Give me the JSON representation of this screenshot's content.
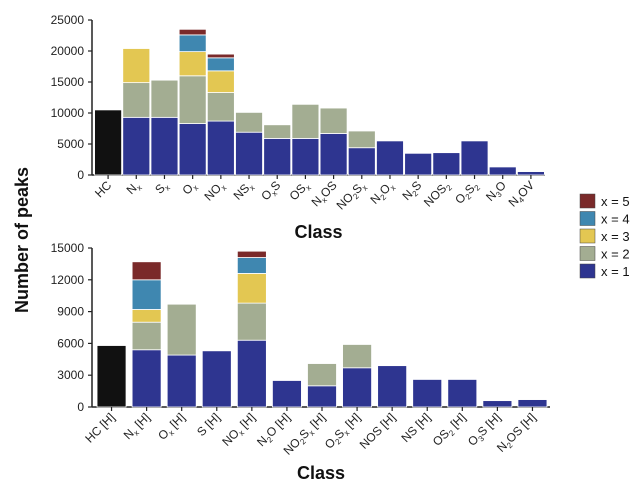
{
  "y_axis_title": "Number of peaks",
  "legend": {
    "entries": [
      {
        "label": "x = 5",
        "color": "#7a2a2a"
      },
      {
        "label": "x = 4",
        "color": "#3f87b0"
      },
      {
        "label": "x = 3",
        "color": "#e3c752"
      },
      {
        "label": "x = 2",
        "color": "#a3ad92"
      },
      {
        "label": "x = 1",
        "color": "#2e3590"
      }
    ]
  },
  "colors": {
    "HC": "#111111",
    "axis": "#222222",
    "bar_edge": "#ffffff"
  },
  "chart_data": [
    {
      "type": "bar",
      "stacked": true,
      "xlabel": "Class",
      "ylabel": "Number of peaks",
      "ylim": [
        0,
        25000
      ],
      "yticks": [
        0,
        5000,
        10000,
        15000,
        20000,
        25000
      ],
      "categories": [
        "HC",
        "Nx",
        "Sx",
        "Ox",
        "NOx",
        "NSx",
        "OxS",
        "OSx",
        "NxOS",
        "NO2Sx",
        "N2Ox",
        "N2S",
        "NOS2",
        "O2S2",
        "N3O",
        "N4OV"
      ],
      "category_labels": [
        [
          {
            "t": "HC"
          }
        ],
        [
          {
            "t": "N"
          },
          {
            "t": "x",
            "sub": true
          }
        ],
        [
          {
            "t": "S"
          },
          {
            "t": "x",
            "sub": true
          }
        ],
        [
          {
            "t": "O"
          },
          {
            "t": "x",
            "sub": true
          }
        ],
        [
          {
            "t": "NO"
          },
          {
            "t": "x",
            "sub": true
          }
        ],
        [
          {
            "t": "NS"
          },
          {
            "t": "x",
            "sub": true
          }
        ],
        [
          {
            "t": "O"
          },
          {
            "t": "x",
            "sub": true
          },
          {
            "t": "S"
          }
        ],
        [
          {
            "t": "OS"
          },
          {
            "t": "x",
            "sub": true
          }
        ],
        [
          {
            "t": "N"
          },
          {
            "t": "x",
            "sub": true
          },
          {
            "t": "OS"
          }
        ],
        [
          {
            "t": "NO"
          },
          {
            "t": "2",
            "sub": true
          },
          {
            "t": "S"
          },
          {
            "t": "x",
            "sub": true
          }
        ],
        [
          {
            "t": "N"
          },
          {
            "t": "2",
            "sub": true
          },
          {
            "t": "O"
          },
          {
            "t": "x",
            "sub": true
          }
        ],
        [
          {
            "t": "N"
          },
          {
            "t": "2",
            "sub": true
          },
          {
            "t": "S"
          }
        ],
        [
          {
            "t": "NOS"
          },
          {
            "t": "2",
            "sub": true
          }
        ],
        [
          {
            "t": "O"
          },
          {
            "t": "2",
            "sub": true
          },
          {
            "t": "S"
          },
          {
            "t": "2",
            "sub": true
          }
        ],
        [
          {
            "t": "N"
          },
          {
            "t": "3",
            "sub": true
          },
          {
            "t": "O"
          }
        ],
        [
          {
            "t": "N"
          },
          {
            "t": "4",
            "sub": true
          },
          {
            "t": "OV"
          }
        ]
      ],
      "series": [
        {
          "name": "HC",
          "values": [
            10500,
            0,
            0,
            0,
            0,
            0,
            0,
            0,
            0,
            0,
            0,
            0,
            0,
            0,
            0,
            0
          ]
        },
        {
          "name": "x = 1",
          "values": [
            0,
            9300,
            9300,
            8300,
            8700,
            6900,
            5900,
            5900,
            6700,
            4400,
            5500,
            3500,
            3600,
            5500,
            1300,
            550
          ]
        },
        {
          "name": "x = 2",
          "values": [
            0,
            5600,
            6000,
            7700,
            4600,
            3200,
            2200,
            5500,
            4100,
            2700,
            0,
            0,
            0,
            0,
            0,
            0
          ]
        },
        {
          "name": "x = 3",
          "values": [
            0,
            5500,
            0,
            3900,
            3500,
            0,
            0,
            0,
            0,
            0,
            0,
            0,
            0,
            0,
            0,
            0
          ]
        },
        {
          "name": "x = 4",
          "values": [
            0,
            0,
            0,
            2700,
            2100,
            0,
            0,
            0,
            0,
            0,
            0,
            0,
            0,
            0,
            0,
            0
          ]
        },
        {
          "name": "x = 5",
          "values": [
            0,
            0,
            0,
            900,
            600,
            0,
            0,
            0,
            0,
            0,
            0,
            0,
            0,
            0,
            0,
            0
          ]
        }
      ]
    },
    {
      "type": "bar",
      "stacked": true,
      "xlabel": "Class",
      "ylabel": "Number of peaks",
      "ylim": [
        0,
        15000
      ],
      "yticks": [
        0,
        3000,
        6000,
        9000,
        12000,
        15000
      ],
      "categories": [
        "HC [H]",
        "Nx [H]",
        "Ox [H]",
        "S [H]",
        "NOx [H]",
        "N2O [H]",
        "NO2Sx [H]",
        "O2Sx [H]",
        "NOS [H]",
        "NS [H]",
        "OS2 [H]",
        "O3S [H]",
        "N2OS [H]"
      ],
      "category_labels": [
        [
          {
            "t": "HC [H]"
          }
        ],
        [
          {
            "t": "N"
          },
          {
            "t": "x",
            "sub": true
          },
          {
            "t": " [H]"
          }
        ],
        [
          {
            "t": "O"
          },
          {
            "t": "x",
            "sub": true
          },
          {
            "t": " [H]"
          }
        ],
        [
          {
            "t": "S [H]"
          }
        ],
        [
          {
            "t": "NO"
          },
          {
            "t": "x",
            "sub": true
          },
          {
            "t": " [H]"
          }
        ],
        [
          {
            "t": "N"
          },
          {
            "t": "2",
            "sub": true
          },
          {
            "t": "O [H]"
          }
        ],
        [
          {
            "t": "NO"
          },
          {
            "t": "2",
            "sub": true
          },
          {
            "t": "S"
          },
          {
            "t": "x",
            "sub": true
          },
          {
            "t": " [H]"
          }
        ],
        [
          {
            "t": "O"
          },
          {
            "t": "2",
            "sub": true
          },
          {
            "t": "S"
          },
          {
            "t": "x",
            "sub": true
          },
          {
            "t": " [H]"
          }
        ],
        [
          {
            "t": "NOS [H]"
          }
        ],
        [
          {
            "t": "NS [H]"
          }
        ],
        [
          {
            "t": "OS"
          },
          {
            "t": "2",
            "sub": true
          },
          {
            "t": " [H]"
          }
        ],
        [
          {
            "t": "O"
          },
          {
            "t": "3",
            "sub": true
          },
          {
            "t": "S [H]"
          }
        ],
        [
          {
            "t": "N"
          },
          {
            "t": "2",
            "sub": true
          },
          {
            "t": "OS [H]"
          }
        ]
      ],
      "series": [
        {
          "name": "HC",
          "values": [
            5800,
            0,
            0,
            0,
            0,
            0,
            0,
            0,
            0,
            0,
            0,
            0,
            0
          ]
        },
        {
          "name": "x = 1",
          "values": [
            0,
            5400,
            4900,
            5300,
            6300,
            2500,
            2000,
            3700,
            3900,
            2600,
            2600,
            600,
            700
          ]
        },
        {
          "name": "x = 2",
          "values": [
            0,
            2600,
            4800,
            0,
            3500,
            0,
            2100,
            2200,
            0,
            0,
            0,
            0,
            0
          ]
        },
        {
          "name": "x = 3",
          "values": [
            0,
            1200,
            0,
            0,
            2800,
            0,
            0,
            0,
            0,
            0,
            0,
            0,
            0
          ]
        },
        {
          "name": "x = 4",
          "values": [
            0,
            2800,
            0,
            0,
            1500,
            0,
            0,
            0,
            0,
            0,
            0,
            0,
            0
          ]
        },
        {
          "name": "x = 5",
          "values": [
            0,
            1700,
            0,
            0,
            600,
            0,
            0,
            0,
            0,
            0,
            0,
            0,
            0
          ]
        }
      ]
    }
  ]
}
